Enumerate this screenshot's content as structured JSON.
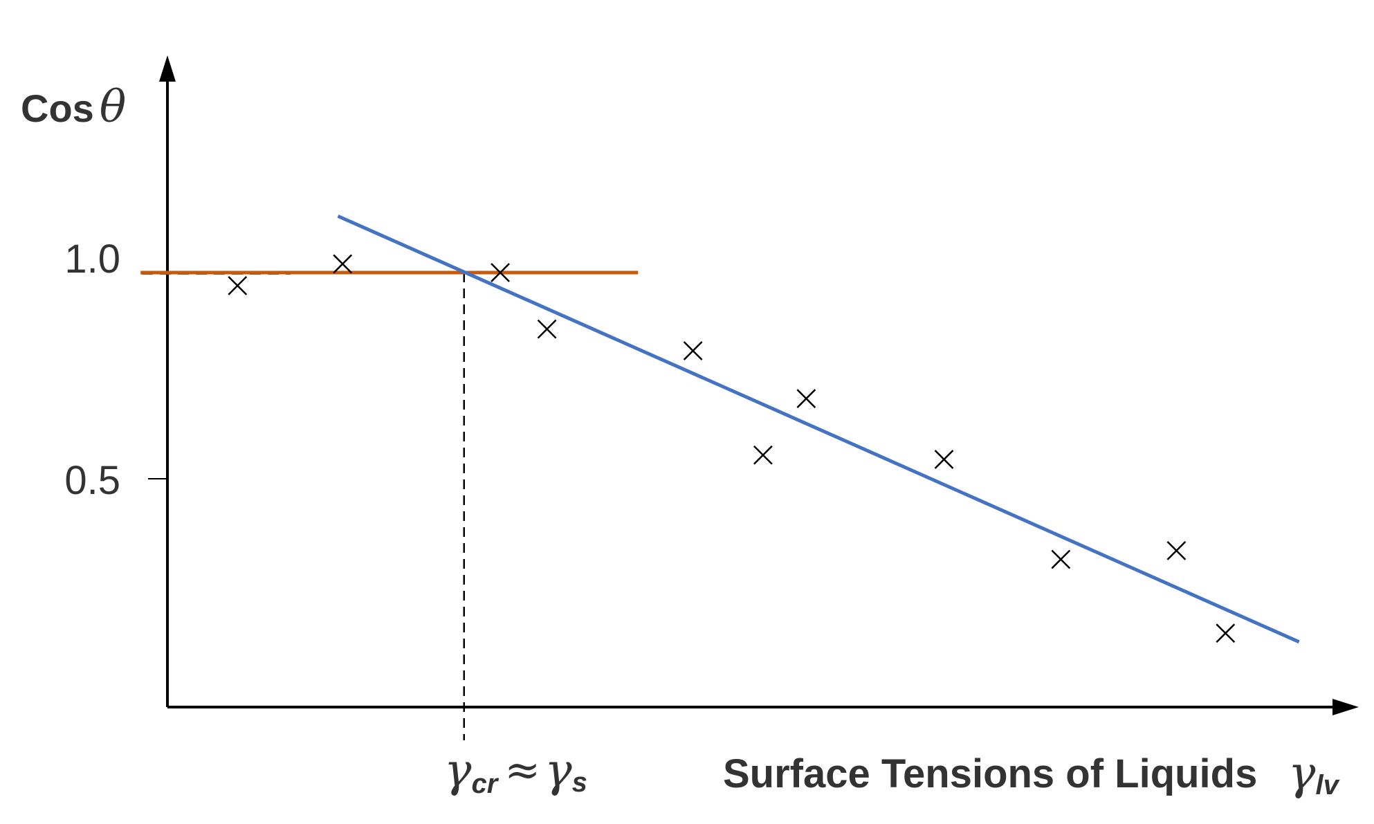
{
  "chart_data": {
    "type": "scatter",
    "title": "",
    "ylabel": {
      "prefix": "Cos",
      "symbol": "θ"
    },
    "xlabel": {
      "text": "Surface Tensions of Liquids",
      "symbol": "γ",
      "subscript": "lv"
    },
    "yticks": [
      "1.0",
      "0.5"
    ],
    "ytick_values": [
      1.0,
      0.5
    ],
    "xlim": [
      0,
      100
    ],
    "ylim": [
      0,
      1.5
    ],
    "points": [
      {
        "x": 6.0,
        "y": 0.97
      },
      {
        "x": 15.0,
        "y": 1.02
      },
      {
        "x": 28.5,
        "y": 1.0
      },
      {
        "x": 32.5,
        "y": 0.87
      },
      {
        "x": 45.0,
        "y": 0.82
      },
      {
        "x": 51.0,
        "y": 0.58
      },
      {
        "x": 54.7,
        "y": 0.71
      },
      {
        "x": 66.5,
        "y": 0.57
      },
      {
        "x": 76.5,
        "y": 0.34
      },
      {
        "x": 86.4,
        "y": 0.36
      },
      {
        "x": 90.6,
        "y": 0.17
      }
    ],
    "regression_line": {
      "x": [
        14.6,
        96.9
      ],
      "y": [
        1.13,
        0.15
      ],
      "color": "#4472C4"
    },
    "horizontal_line": {
      "x": [
        -2.3,
        40.3
      ],
      "y": 1.0,
      "color": "#C55A11"
    },
    "critical_marker": {
      "x": 25.4,
      "label": {
        "gamma": "γ",
        "sub1": "cr",
        "approx": "≈",
        "gamma2": "γ",
        "sub2": "s"
      }
    }
  }
}
